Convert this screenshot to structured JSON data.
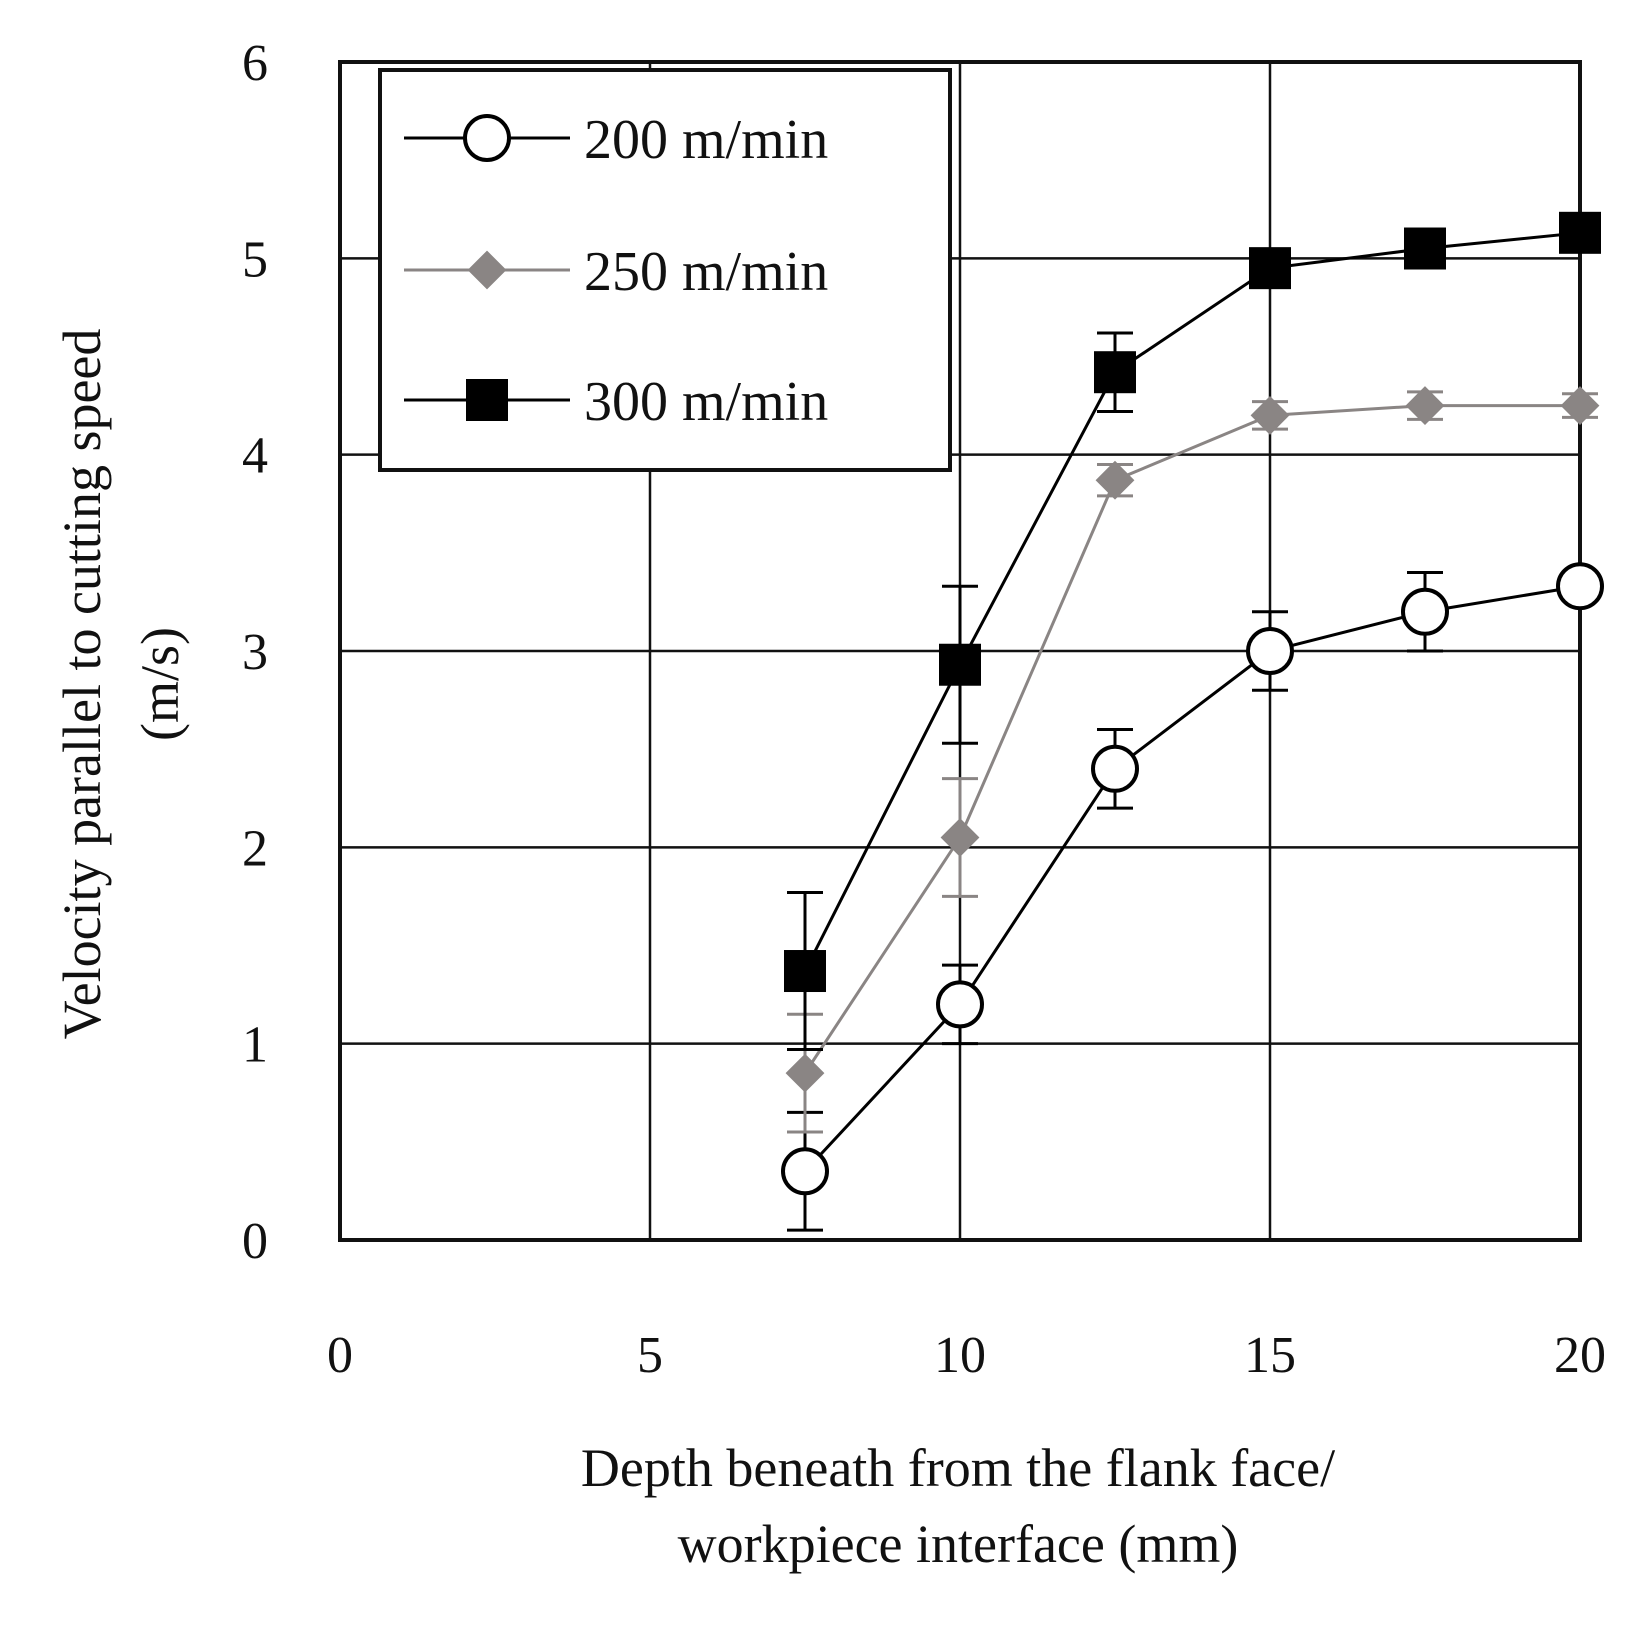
{
  "chart_data": {
    "type": "line",
    "title": "",
    "xlabel_lines": [
      "Depth beneath from the flank face/",
      "workpiece interface (mm)"
    ],
    "ylabel_lines": [
      "Velocity parallel to cutting speed",
      "(m/s)"
    ],
    "xlim": [
      0,
      20
    ],
    "ylim": [
      0,
      6
    ],
    "xticks": [
      "0",
      "5",
      "10",
      "15",
      "20"
    ],
    "yticks": [
      "0",
      "1",
      "2",
      "3",
      "4",
      "5",
      "6"
    ],
    "grid": true,
    "legend_position": "top-left",
    "series": [
      {
        "name": "200 m/min",
        "marker": "circle-open",
        "color": "#000000",
        "x": [
          7.5,
          10,
          12.5,
          15,
          17.5,
          20
        ],
        "y": [
          0.35,
          1.2,
          2.4,
          3.0,
          3.2,
          3.33
        ],
        "err": [
          0.3,
          0.2,
          0.2,
          0.2,
          0.2,
          0
        ]
      },
      {
        "name": "250 m/min",
        "marker": "diamond",
        "color": "#8a8584",
        "x": [
          7.5,
          10,
          12.5,
          15,
          17.5,
          20
        ],
        "y": [
          0.85,
          2.05,
          3.87,
          4.2,
          4.25,
          4.25
        ],
        "err": [
          0.3,
          0.3,
          0.08,
          0.07,
          0.07,
          0.06
        ]
      },
      {
        "name": "300 m/min",
        "marker": "square",
        "color": "#000000",
        "x": [
          7.5,
          10,
          12.5,
          15,
          17.5,
          20
        ],
        "y": [
          1.37,
          2.93,
          4.42,
          4.95,
          5.05,
          5.13
        ],
        "err": [
          0.4,
          0.4,
          0.2,
          0,
          0,
          0
        ]
      }
    ]
  }
}
